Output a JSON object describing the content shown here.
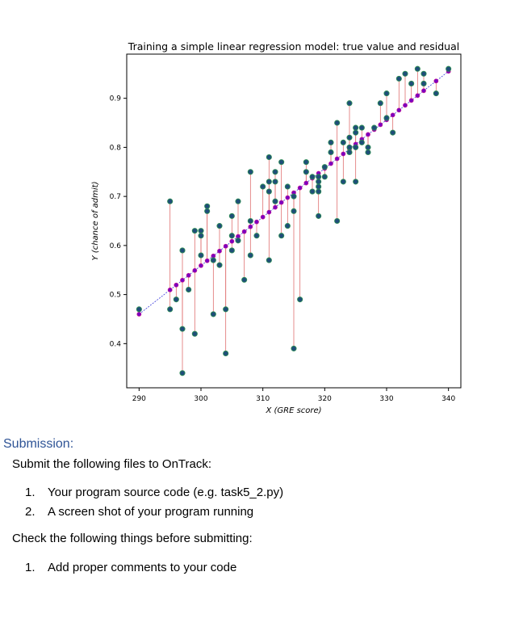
{
  "chart_data": {
    "type": "scatter",
    "title": "Training a simple linear regression model: true value and residual",
    "xlabel": "X (GRE score)",
    "ylabel": "Y (chance of admit)",
    "xlim": [
      288,
      342
    ],
    "ylim": [
      0.31,
      0.99
    ],
    "xticks": [
      290,
      300,
      310,
      320,
      330,
      340
    ],
    "yticks": [
      0.4,
      0.5,
      0.6,
      0.7,
      0.8,
      0.9
    ],
    "grid": false,
    "legend": "none",
    "regression_line": {
      "x": [
        290,
        340
      ],
      "y": [
        0.46,
        0.955
      ]
    },
    "series": [
      {
        "role": "true_values",
        "color": "#1f4e79",
        "points": [
          [
            290,
            0.47
          ],
          [
            295,
            0.69
          ],
          [
            295,
            0.47
          ],
          [
            296,
            0.49
          ],
          [
            297,
            0.43
          ],
          [
            297,
            0.34
          ],
          [
            297,
            0.59
          ],
          [
            298,
            0.51
          ],
          [
            299,
            0.42
          ],
          [
            299,
            0.63
          ],
          [
            300,
            0.63
          ],
          [
            300,
            0.62
          ],
          [
            300,
            0.58
          ],
          [
            301,
            0.68
          ],
          [
            301,
            0.67
          ],
          [
            302,
            0.57
          ],
          [
            302,
            0.46
          ],
          [
            303,
            0.56
          ],
          [
            303,
            0.64
          ],
          [
            304,
            0.38
          ],
          [
            304,
            0.47
          ],
          [
            305,
            0.66
          ],
          [
            305,
            0.62
          ],
          [
            305,
            0.59
          ],
          [
            306,
            0.69
          ],
          [
            306,
            0.61
          ],
          [
            307,
            0.53
          ],
          [
            308,
            0.75
          ],
          [
            308,
            0.65
          ],
          [
            308,
            0.58
          ],
          [
            309,
            0.62
          ],
          [
            310,
            0.72
          ],
          [
            311,
            0.78
          ],
          [
            311,
            0.73
          ],
          [
            311,
            0.71
          ],
          [
            311,
            0.57
          ],
          [
            312,
            0.75
          ],
          [
            312,
            0.73
          ],
          [
            312,
            0.69
          ],
          [
            313,
            0.77
          ],
          [
            313,
            0.62
          ],
          [
            314,
            0.72
          ],
          [
            314,
            0.64
          ],
          [
            315,
            0.7
          ],
          [
            315,
            0.67
          ],
          [
            315,
            0.39
          ],
          [
            316,
            0.49
          ],
          [
            317,
            0.77
          ],
          [
            317,
            0.75
          ],
          [
            318,
            0.74
          ],
          [
            318,
            0.71
          ],
          [
            319,
            0.74
          ],
          [
            319,
            0.73
          ],
          [
            319,
            0.72
          ],
          [
            319,
            0.71
          ],
          [
            319,
            0.66
          ],
          [
            320,
            0.76
          ],
          [
            320,
            0.74
          ],
          [
            321,
            0.81
          ],
          [
            321,
            0.79
          ],
          [
            322,
            0.85
          ],
          [
            322,
            0.65
          ],
          [
            323,
            0.81
          ],
          [
            323,
            0.73
          ],
          [
            324,
            0.89
          ],
          [
            324,
            0.82
          ],
          [
            324,
            0.8
          ],
          [
            324,
            0.79
          ],
          [
            325,
            0.84
          ],
          [
            325,
            0.83
          ],
          [
            325,
            0.8
          ],
          [
            325,
            0.73
          ],
          [
            326,
            0.84
          ],
          [
            326,
            0.81
          ],
          [
            327,
            0.8
          ],
          [
            327,
            0.79
          ],
          [
            328,
            0.84
          ],
          [
            329,
            0.89
          ],
          [
            330,
            0.91
          ],
          [
            330,
            0.86
          ],
          [
            331,
            0.83
          ],
          [
            332,
            0.94
          ],
          [
            333,
            0.95
          ],
          [
            334,
            0.93
          ],
          [
            335,
            0.96
          ],
          [
            336,
            0.95
          ],
          [
            336,
            0.93
          ],
          [
            338,
            0.91
          ],
          [
            340,
            0.96
          ]
        ]
      },
      {
        "role": "predicted_values",
        "color": "#7b00c0"
      },
      {
        "role": "residuals",
        "color": "#e07070"
      }
    ]
  },
  "document": {
    "heading": "Submission:",
    "intro": "Submit the following files to OnTrack:",
    "files": [
      {
        "num": "1.",
        "text": "Your program source code (e.g. task5_2.py)"
      },
      {
        "num": "2.",
        "text": "A screen shot of your program running"
      }
    ],
    "check_intro": "Check the following things before submitting:",
    "checks": [
      {
        "num": "1.",
        "text": "Add proper comments to your code"
      }
    ]
  }
}
